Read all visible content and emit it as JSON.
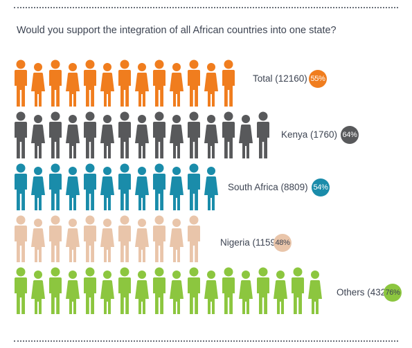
{
  "question": "Would you support the integration of all African countries into one state?",
  "chart_data": {
    "type": "pictograph",
    "title": "Would you support the integration of all African countries into one state?",
    "unit": "percent supporting",
    "rows": [
      {
        "label": "Total (12160)",
        "group": "Total",
        "n": 12160,
        "value": 55,
        "value_label": "55%",
        "color": "#f07d1e",
        "badge_text_color": "#ffffff",
        "icon_count": 13
      },
      {
        "label": "Kenya (1760)",
        "group": "Kenya",
        "n": 1760,
        "value": 64,
        "value_label": "64%",
        "color": "#58595b",
        "badge_text_color": "#ffffff",
        "icon_count": 15
      },
      {
        "label": "South Africa (8809)",
        "group": "South Africa",
        "n": 8809,
        "value": 54,
        "value_label": "54%",
        "color": "#1a8caa",
        "badge_text_color": "#ffffff",
        "icon_count": 12
      },
      {
        "label": "Nigeria (1159)",
        "group": "Nigeria",
        "n": 1159,
        "value": 48,
        "value_label": "48%",
        "color": "#e9c5aa",
        "badge_text_color": "#3d4452",
        "icon_count": 11
      },
      {
        "label": "Others (432)",
        "group": "Others",
        "n": 432,
        "value": 76,
        "value_label": "76%",
        "color": "#8cc63f",
        "badge_text_color": "#3d4452",
        "icon_count": 18
      }
    ]
  }
}
